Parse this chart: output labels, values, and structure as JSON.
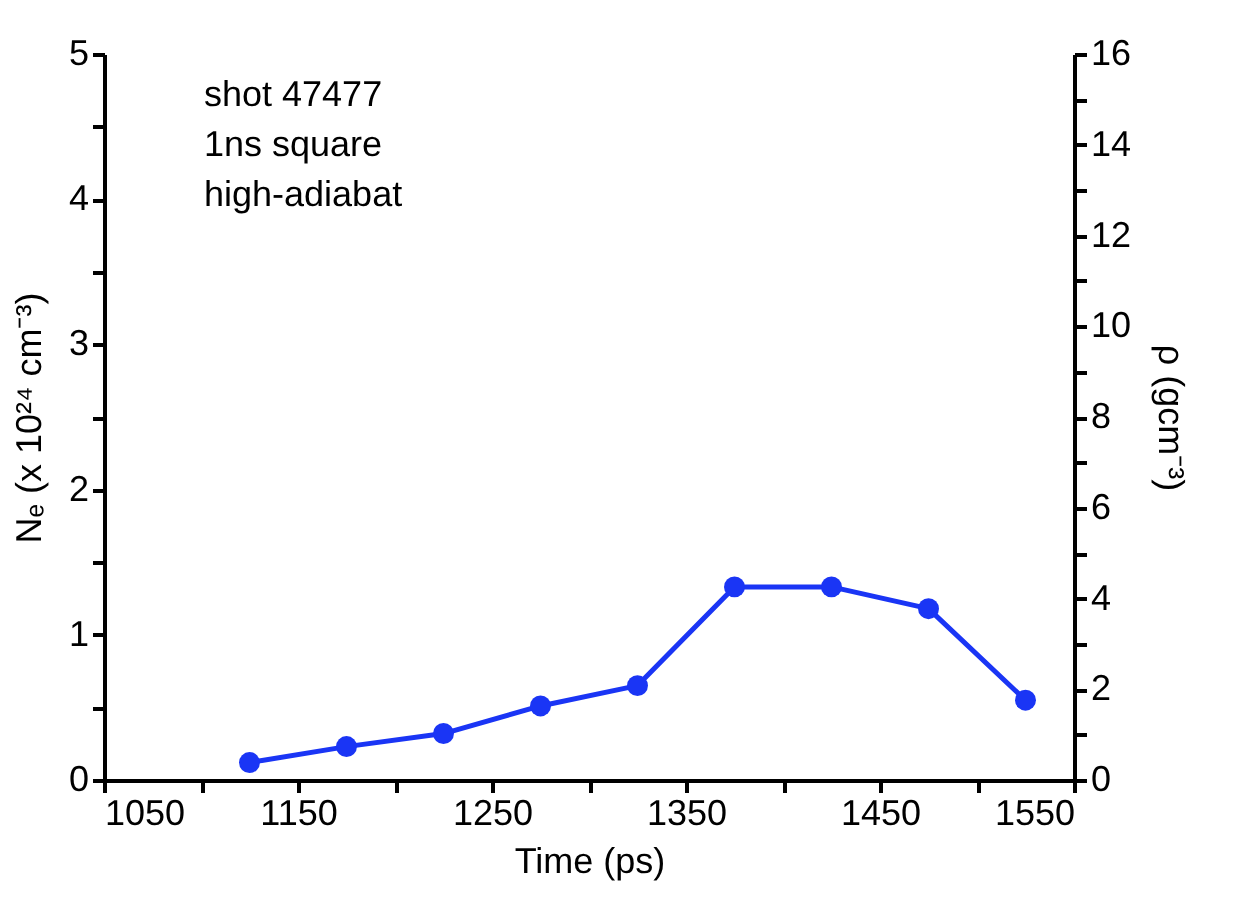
{
  "chart_data": {
    "type": "line",
    "xlabel": "Time (ps)",
    "ylabel": "Nₑ (x 10²⁴ cm⁻³)",
    "y2label": "ρ (gcm⁻³)",
    "annotations": [
      "shot 47477",
      "1ns square",
      "high-adiabat"
    ],
    "x": [
      1125,
      1175,
      1225,
      1275,
      1325,
      1375,
      1425,
      1475,
      1525
    ],
    "series": [
      {
        "color": "#1a35f5",
        "values": [
          0.12,
          0.23,
          0.32,
          0.51,
          0.65,
          1.33,
          1.33,
          1.18,
          0.55
        ]
      }
    ],
    "xlim": [
      1050,
      1550
    ],
    "xticks": [
      1050,
      {
        "value": 1100,
        "label": null
      },
      1150,
      {
        "value": 1200,
        "label": null
      },
      1250,
      {
        "value": 1300,
        "label": null
      },
      1350,
      {
        "value": 1400,
        "label": null
      },
      1450,
      {
        "value": 1500,
        "label": null
      },
      1550
    ],
    "ylim": [
      0,
      5
    ],
    "yticks": [
      0,
      {
        "value": 0.5,
        "label": null
      },
      1,
      {
        "value": 1.5,
        "label": null
      },
      2,
      {
        "value": 2.5,
        "label": null
      },
      3,
      {
        "value": 3.5,
        "label": null
      },
      4,
      {
        "value": 4.5,
        "label": null
      },
      5
    ],
    "y2lim": [
      0,
      16
    ],
    "y2ticks": [
      0,
      {
        "value": 1,
        "label": null
      },
      2,
      {
        "value": 3,
        "label": null
      },
      4,
      {
        "value": 5,
        "label": null
      },
      6,
      {
        "value": 7,
        "label": null
      },
      8,
      {
        "value": 9,
        "label": null
      },
      10,
      {
        "value": 11,
        "label": null
      },
      12,
      {
        "value": 13,
        "label": null
      },
      14,
      {
        "value": 15,
        "label": null
      },
      16
    ],
    "grid": false,
    "marker": "circle",
    "line_style": "solid"
  }
}
